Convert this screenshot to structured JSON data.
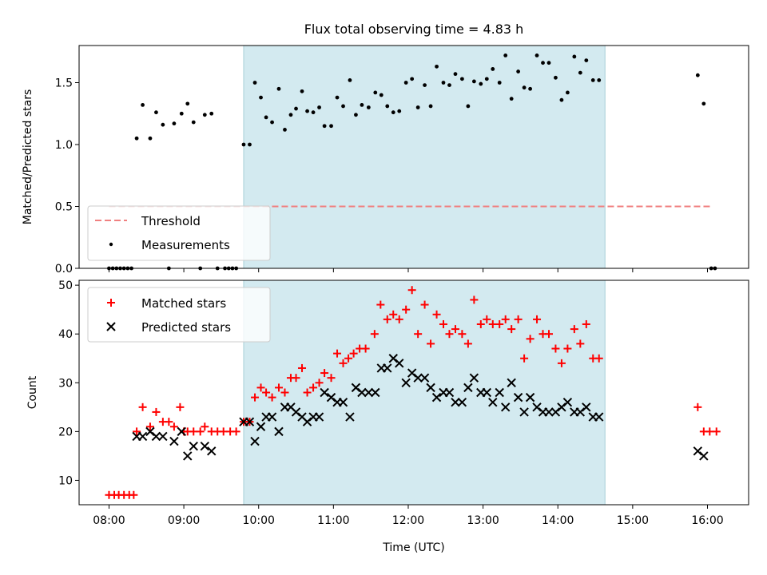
{
  "chart_data": [
    {
      "type": "scatter",
      "title": "Flux total observing time = 4.83 h",
      "xlabel": "",
      "ylabel": "Matched/Predicted stars",
      "xlim": [
        7.6,
        16.55
      ],
      "ylim": [
        0,
        1.8
      ],
      "yticks": [
        0.0,
        0.5,
        1.0,
        1.5
      ],
      "ytick_labels": [
        "0.0",
        "0.5",
        "1.0",
        "1.5"
      ],
      "xticks": [
        8,
        9,
        10,
        11,
        12,
        13,
        14,
        15,
        16
      ],
      "shaded_span": [
        9.8,
        14.63
      ],
      "shade_color": "#d3eaf0",
      "threshold": {
        "name": "Threshold",
        "value": 0.5,
        "x_range": [
          8.0,
          16.07
        ],
        "color": "#f08080"
      },
      "series": [
        {
          "name": "Measurements",
          "color": "#000000",
          "points": [
            [
              8.0,
              0
            ],
            [
              8.05,
              0
            ],
            [
              8.1,
              0
            ],
            [
              8.15,
              0
            ],
            [
              8.2,
              0
            ],
            [
              8.25,
              0
            ],
            [
              8.3,
              0
            ],
            [
              8.37,
              1.05
            ],
            [
              8.45,
              1.32
            ],
            [
              8.55,
              1.05
            ],
            [
              8.63,
              1.26
            ],
            [
              8.72,
              1.16
            ],
            [
              8.87,
              1.17
            ],
            [
              8.97,
              1.25
            ],
            [
              9.05,
              1.33
            ],
            [
              9.13,
              1.18
            ],
            [
              9.28,
              1.24
            ],
            [
              9.37,
              1.25
            ],
            [
              8.8,
              0
            ],
            [
              9.22,
              0
            ],
            [
              9.45,
              0
            ],
            [
              9.55,
              0
            ],
            [
              9.6,
              0
            ],
            [
              9.65,
              0
            ],
            [
              9.7,
              0
            ],
            [
              9.8,
              1.0
            ],
            [
              9.88,
              1.0
            ],
            [
              9.95,
              1.5
            ],
            [
              10.03,
              1.38
            ],
            [
              10.1,
              1.22
            ],
            [
              10.18,
              1.18
            ],
            [
              10.27,
              1.45
            ],
            [
              10.35,
              1.12
            ],
            [
              10.43,
              1.24
            ],
            [
              10.5,
              1.29
            ],
            [
              10.58,
              1.43
            ],
            [
              10.65,
              1.27
            ],
            [
              10.73,
              1.26
            ],
            [
              10.81,
              1.3
            ],
            [
              10.88,
              1.15
            ],
            [
              10.97,
              1.15
            ],
            [
              11.05,
              1.38
            ],
            [
              11.13,
              1.31
            ],
            [
              11.22,
              1.52
            ],
            [
              11.3,
              1.24
            ],
            [
              11.38,
              1.32
            ],
            [
              11.47,
              1.3
            ],
            [
              11.56,
              1.42
            ],
            [
              11.64,
              1.4
            ],
            [
              11.72,
              1.31
            ],
            [
              11.8,
              1.26
            ],
            [
              11.88,
              1.27
            ],
            [
              11.97,
              1.5
            ],
            [
              12.05,
              1.53
            ],
            [
              12.13,
              1.3
            ],
            [
              12.22,
              1.48
            ],
            [
              12.3,
              1.31
            ],
            [
              12.38,
              1.63
            ],
            [
              12.47,
              1.5
            ],
            [
              12.55,
              1.48
            ],
            [
              12.63,
              1.57
            ],
            [
              12.72,
              1.53
            ],
            [
              12.8,
              1.31
            ],
            [
              12.88,
              1.51
            ],
            [
              12.97,
              1.49
            ],
            [
              13.05,
              1.53
            ],
            [
              13.13,
              1.61
            ],
            [
              13.22,
              1.5
            ],
            [
              13.3,
              1.72
            ],
            [
              13.38,
              1.37
            ],
            [
              13.47,
              1.59
            ],
            [
              13.55,
              1.46
            ],
            [
              13.63,
              1.45
            ],
            [
              13.72,
              1.72
            ],
            [
              13.8,
              1.66
            ],
            [
              13.88,
              1.66
            ],
            [
              13.97,
              1.54
            ],
            [
              14.05,
              1.36
            ],
            [
              14.13,
              1.42
            ],
            [
              14.22,
              1.71
            ],
            [
              14.3,
              1.58
            ],
            [
              14.38,
              1.68
            ],
            [
              14.47,
              1.52
            ],
            [
              14.55,
              1.52
            ],
            [
              15.87,
              1.56
            ],
            [
              15.95,
              1.33
            ],
            [
              16.05,
              0
            ],
            [
              16.1,
              0
            ]
          ]
        }
      ],
      "legend": {
        "placement": "lower-left",
        "entries": [
          "Threshold",
          "Measurements"
        ]
      }
    },
    {
      "type": "scatter",
      "title": "",
      "xlabel": "Time (UTC)",
      "ylabel": "Count",
      "xlim": [
        7.6,
        16.55
      ],
      "ylim": [
        5,
        51
      ],
      "yticks": [
        10,
        20,
        30,
        40,
        50
      ],
      "xticks": [
        8,
        9,
        10,
        11,
        12,
        13,
        14,
        15,
        16
      ],
      "xtick_labels": [
        "08:00",
        "09:00",
        "10:00",
        "11:00",
        "12:00",
        "13:00",
        "14:00",
        "15:00",
        "16:00"
      ],
      "shaded_span": [
        9.8,
        14.63
      ],
      "series": [
        {
          "name": "Matched stars",
          "marker": "plus",
          "color": "#ff0000",
          "points": [
            [
              8.0,
              7
            ],
            [
              8.07,
              7
            ],
            [
              8.13,
              7
            ],
            [
              8.2,
              7
            ],
            [
              8.27,
              7
            ],
            [
              8.33,
              7
            ],
            [
              8.37,
              20
            ],
            [
              8.45,
              25
            ],
            [
              8.55,
              21
            ],
            [
              8.63,
              24
            ],
            [
              8.72,
              22
            ],
            [
              8.8,
              22
            ],
            [
              8.87,
              21
            ],
            [
              8.95,
              25
            ],
            [
              9.0,
              20
            ],
            [
              9.05,
              20
            ],
            [
              9.13,
              20
            ],
            [
              9.22,
              20
            ],
            [
              9.28,
              21
            ],
            [
              9.37,
              20
            ],
            [
              9.45,
              20
            ],
            [
              9.53,
              20
            ],
            [
              9.62,
              20
            ],
            [
              9.7,
              20
            ],
            [
              9.8,
              22
            ],
            [
              9.88,
              22
            ],
            [
              9.95,
              27
            ],
            [
              10.03,
              29
            ],
            [
              10.1,
              28
            ],
            [
              10.18,
              27
            ],
            [
              10.27,
              29
            ],
            [
              10.35,
              28
            ],
            [
              10.43,
              31
            ],
            [
              10.5,
              31
            ],
            [
              10.58,
              33
            ],
            [
              10.65,
              28
            ],
            [
              10.73,
              29
            ],
            [
              10.81,
              30
            ],
            [
              10.88,
              32
            ],
            [
              10.97,
              31
            ],
            [
              11.05,
              36
            ],
            [
              11.13,
              34
            ],
            [
              11.2,
              35
            ],
            [
              11.27,
              36
            ],
            [
              11.35,
              37
            ],
            [
              11.43,
              37
            ],
            [
              11.55,
              40
            ],
            [
              11.63,
              46
            ],
            [
              11.72,
              43
            ],
            [
              11.8,
              44
            ],
            [
              11.88,
              43
            ],
            [
              11.97,
              45
            ],
            [
              12.05,
              49
            ],
            [
              12.13,
              40
            ],
            [
              12.22,
              46
            ],
            [
              12.3,
              38
            ],
            [
              12.38,
              44
            ],
            [
              12.47,
              42
            ],
            [
              12.55,
              40
            ],
            [
              12.63,
              41
            ],
            [
              12.72,
              40
            ],
            [
              12.8,
              38
            ],
            [
              12.88,
              47
            ],
            [
              12.97,
              42
            ],
            [
              13.05,
              43
            ],
            [
              13.13,
              42
            ],
            [
              13.22,
              42
            ],
            [
              13.3,
              43
            ],
            [
              13.38,
              41
            ],
            [
              13.47,
              43
            ],
            [
              13.55,
              35
            ],
            [
              13.63,
              39
            ],
            [
              13.72,
              43
            ],
            [
              13.8,
              40
            ],
            [
              13.88,
              40
            ],
            [
              13.97,
              37
            ],
            [
              14.05,
              34
            ],
            [
              14.13,
              37
            ],
            [
              14.22,
              41
            ],
            [
              14.3,
              38
            ],
            [
              14.38,
              42
            ],
            [
              14.47,
              35
            ],
            [
              14.55,
              35
            ],
            [
              15.87,
              25
            ],
            [
              15.95,
              20
            ],
            [
              16.03,
              20
            ],
            [
              16.12,
              20
            ]
          ]
        },
        {
          "name": "Predicted stars",
          "marker": "x",
          "color": "#000000",
          "points": [
            [
              8.37,
              19
            ],
            [
              8.45,
              19
            ],
            [
              8.55,
              20
            ],
            [
              8.63,
              19
            ],
            [
              8.72,
              19
            ],
            [
              8.87,
              18
            ],
            [
              8.97,
              20
            ],
            [
              9.05,
              15
            ],
            [
              9.13,
              17
            ],
            [
              9.28,
              17
            ],
            [
              9.37,
              16
            ],
            [
              9.8,
              22
            ],
            [
              9.88,
              22
            ],
            [
              9.95,
              18
            ],
            [
              10.03,
              21
            ],
            [
              10.1,
              23
            ],
            [
              10.18,
              23
            ],
            [
              10.27,
              20
            ],
            [
              10.35,
              25
            ],
            [
              10.43,
              25
            ],
            [
              10.5,
              24
            ],
            [
              10.58,
              23
            ],
            [
              10.65,
              22
            ],
            [
              10.73,
              23
            ],
            [
              10.81,
              23
            ],
            [
              10.88,
              28
            ],
            [
              10.97,
              27
            ],
            [
              11.05,
              26
            ],
            [
              11.13,
              26
            ],
            [
              11.22,
              23
            ],
            [
              11.3,
              29
            ],
            [
              11.38,
              28
            ],
            [
              11.47,
              28
            ],
            [
              11.56,
              28
            ],
            [
              11.64,
              33
            ],
            [
              11.72,
              33
            ],
            [
              11.8,
              35
            ],
            [
              11.88,
              34
            ],
            [
              11.97,
              30
            ],
            [
              12.05,
              32
            ],
            [
              12.13,
              31
            ],
            [
              12.22,
              31
            ],
            [
              12.3,
              29
            ],
            [
              12.38,
              27
            ],
            [
              12.47,
              28
            ],
            [
              12.55,
              28
            ],
            [
              12.63,
              26
            ],
            [
              12.72,
              26
            ],
            [
              12.8,
              29
            ],
            [
              12.88,
              31
            ],
            [
              12.97,
              28
            ],
            [
              13.05,
              28
            ],
            [
              13.13,
              26
            ],
            [
              13.22,
              28
            ],
            [
              13.3,
              25
            ],
            [
              13.38,
              30
            ],
            [
              13.47,
              27
            ],
            [
              13.55,
              24
            ],
            [
              13.63,
              27
            ],
            [
              13.72,
              25
            ],
            [
              13.8,
              24
            ],
            [
              13.88,
              24
            ],
            [
              13.97,
              24
            ],
            [
              14.05,
              25
            ],
            [
              14.13,
              26
            ],
            [
              14.22,
              24
            ],
            [
              14.3,
              24
            ],
            [
              14.38,
              25
            ],
            [
              14.47,
              23
            ],
            [
              14.55,
              23
            ],
            [
              15.87,
              16
            ],
            [
              15.95,
              15
            ]
          ]
        }
      ],
      "legend": {
        "placement": "top-left",
        "entries": [
          "Matched stars",
          "Predicted stars"
        ]
      }
    }
  ]
}
